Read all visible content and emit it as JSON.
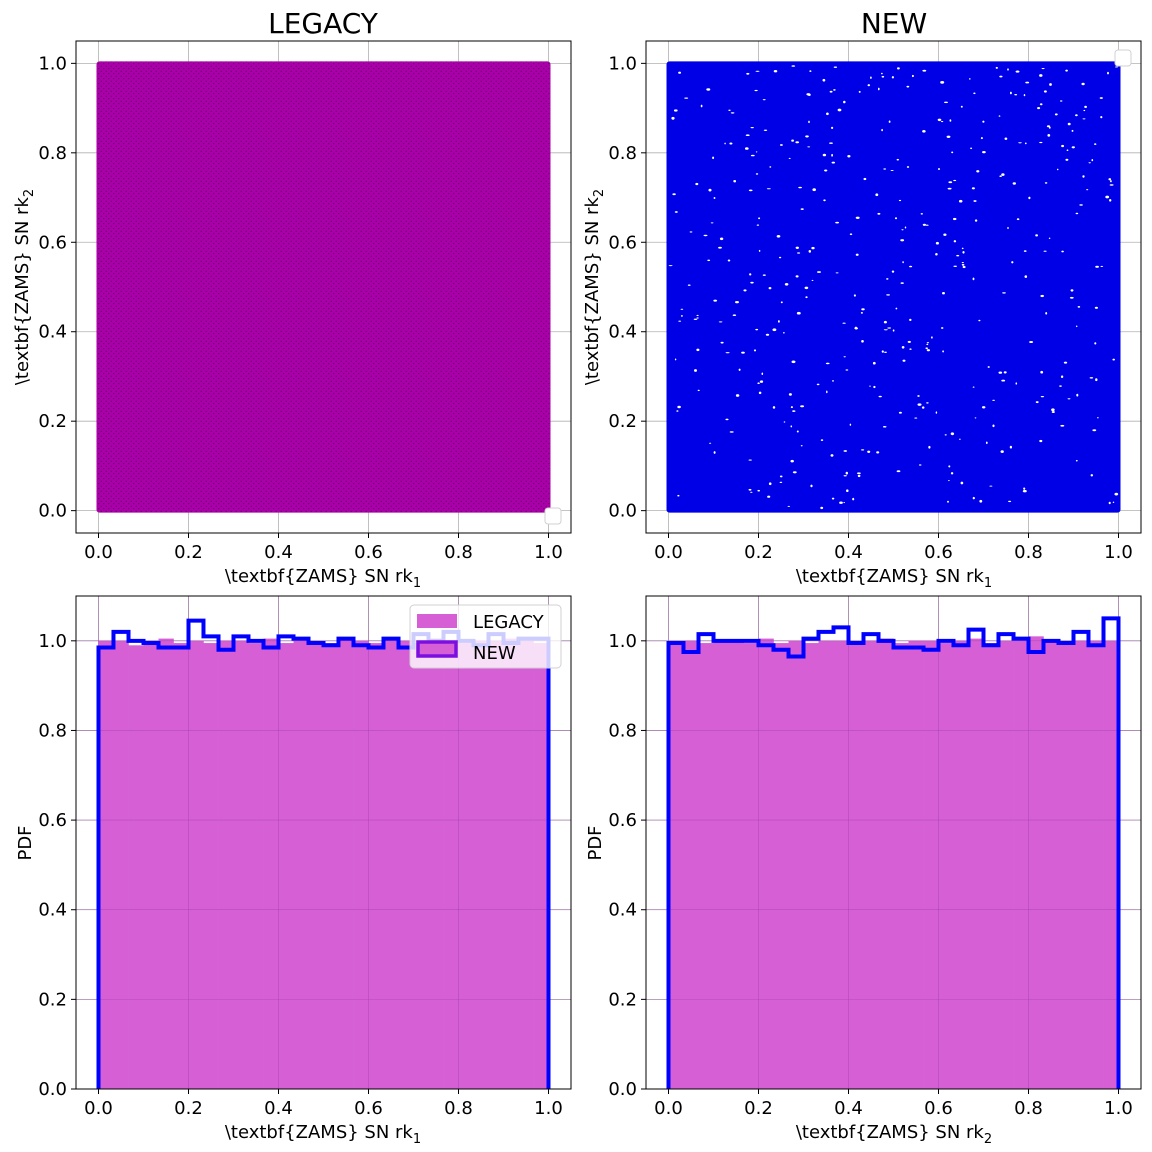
{
  "colors": {
    "legacy_fill": "#d65fd6",
    "legacy_scatter": "#aa00aa",
    "new_scatter": "#0000e6",
    "new_step": "#0000ff",
    "legend_new_edge": "#7b0fe0",
    "grid": "#b0b0b0"
  },
  "chart_data": [
    {
      "type": "scatter",
      "title": "LEGACY",
      "xlabel": "\\textbf{ZAMS} SN rk",
      "xlabel_sub": "1",
      "ylabel": "\\textbf{ZAMS} SN rk",
      "ylabel_sub": "2",
      "xlim": [
        -0.05,
        1.05
      ],
      "ylim": [
        -0.05,
        1.05
      ],
      "x_ticks": [
        "0.0",
        "0.2",
        "0.4",
        "0.6",
        "0.8",
        "1.0"
      ],
      "y_ticks": [
        "0.0",
        "0.2",
        "0.4",
        "0.6",
        "0.8",
        "1.0"
      ],
      "grid": true,
      "series": [
        {
          "color": "#aa00aa",
          "x_range": [
            0,
            1
          ],
          "y_range": [
            0,
            1
          ],
          "distribution": "uniform, dense"
        }
      ],
      "legend": {
        "placement": "lower right",
        "entries": []
      }
    },
    {
      "type": "scatter",
      "title": "NEW",
      "xlabel": "\\textbf{ZAMS} SN rk",
      "xlabel_sub": "1",
      "ylabel": "\\textbf{ZAMS} SN rk",
      "ylabel_sub": "2",
      "xlim": [
        -0.05,
        1.05
      ],
      "ylim": [
        -0.05,
        1.05
      ],
      "x_ticks": [
        "0.0",
        "0.2",
        "0.4",
        "0.6",
        "0.8",
        "1.0"
      ],
      "y_ticks": [
        "0.0",
        "0.2",
        "0.4",
        "0.6",
        "0.8",
        "1.0"
      ],
      "grid": true,
      "series": [
        {
          "color": "#0000e6",
          "x_range": [
            0,
            1
          ],
          "y_range": [
            0,
            1
          ],
          "distribution": "uniform, sparse"
        }
      ],
      "legend": {
        "placement": "upper right",
        "entries": []
      }
    },
    {
      "type": "histogram",
      "title": "",
      "xlabel": "\\textbf{ZAMS} SN rk",
      "xlabel_sub": "1",
      "ylabel": "PDF",
      "xlim": [
        -0.05,
        1.05
      ],
      "ylim": [
        0,
        1.1
      ],
      "x_ticks": [
        "0.0",
        "0.2",
        "0.4",
        "0.6",
        "0.8",
        "1.0"
      ],
      "y_ticks": [
        "0.0",
        "0.2",
        "0.4",
        "0.6",
        "0.8",
        "1.0"
      ],
      "grid": true,
      "bin_edges": [
        0,
        0.0333,
        0.0667,
        0.1,
        0.1333,
        0.1667,
        0.2,
        0.2333,
        0.2667,
        0.3,
        0.3333,
        0.3667,
        0.4,
        0.4333,
        0.4667,
        0.5,
        0.5333,
        0.5667,
        0.6,
        0.6333,
        0.6667,
        0.7,
        0.7333,
        0.7667,
        0.8,
        0.8333,
        0.8667,
        0.9,
        0.9333,
        0.9667,
        1.0
      ],
      "series": [
        {
          "name": "LEGACY",
          "style": "filled",
          "values": [
            1.0,
            1.0,
            0.99,
            1.0,
            1.005,
            0.995,
            1.0,
            0.995,
            1.0,
            1.0,
            0.995,
            1.005,
            0.995,
            1.0,
            1.0,
            0.995,
            1.005,
            1.0,
            0.995,
            1.0,
            1.0,
            0.995,
            1.005,
            1.0,
            0.995,
            1.0,
            1.0,
            1.005,
            1.0,
            0.995
          ]
        },
        {
          "name": "NEW",
          "style": "step",
          "values": [
            0.985,
            1.02,
            1.0,
            0.995,
            0.985,
            0.985,
            1.045,
            1.01,
            0.98,
            1.01,
            1.0,
            0.985,
            1.01,
            1.005,
            0.995,
            0.99,
            1.005,
            0.99,
            0.985,
            1.005,
            0.985,
            1.015,
            1.0,
            1.02,
            1.0,
            0.99,
            1.015,
            0.995,
            1.005,
            1.005
          ]
        }
      ],
      "legend": {
        "placement": "upper right",
        "entries": [
          "LEGACY",
          "NEW"
        ]
      }
    },
    {
      "type": "histogram",
      "title": "",
      "xlabel": "\\textbf{ZAMS} SN rk",
      "xlabel_sub": "2",
      "ylabel": "PDF",
      "xlim": [
        -0.05,
        1.05
      ],
      "ylim": [
        0,
        1.1
      ],
      "x_ticks": [
        "0.0",
        "0.2",
        "0.4",
        "0.6",
        "0.8",
        "1.0"
      ],
      "y_ticks": [
        "0.0",
        "0.2",
        "0.4",
        "0.6",
        "0.8",
        "1.0"
      ],
      "grid": true,
      "bin_edges": [
        0,
        0.0333,
        0.0667,
        0.1,
        0.1333,
        0.1667,
        0.2,
        0.2333,
        0.2667,
        0.3,
        0.3333,
        0.3667,
        0.4,
        0.4333,
        0.4667,
        0.5,
        0.5333,
        0.5667,
        0.6,
        0.6333,
        0.6667,
        0.7,
        0.7333,
        0.7667,
        0.8,
        0.8333,
        0.8667,
        0.9,
        0.9333,
        0.9667,
        1.0
      ],
      "series": [
        {
          "name": "LEGACY",
          "style": "filled",
          "values": [
            1.0,
            1.0,
            0.995,
            1.0,
            1.0,
            0.995,
            1.005,
            0.995,
            1.0,
            0.995,
            1.0,
            1.0,
            0.995,
            1.0,
            1.005,
            0.995,
            1.0,
            1.0,
            0.995,
            1.0,
            1.005,
            0.995,
            1.0,
            1.0,
            1.01,
            1.0,
            0.995,
            1.0,
            1.0,
            1.0
          ]
        },
        {
          "name": "NEW",
          "style": "step",
          "values": [
            0.995,
            0.975,
            1.015,
            1.0,
            1.0,
            1.0,
            0.99,
            0.98,
            0.965,
            1.005,
            1.02,
            1.03,
            0.995,
            1.015,
            1.0,
            0.985,
            0.985,
            0.98,
            1.0,
            0.99,
            1.025,
            0.99,
            1.015,
            1.005,
            0.975,
            1.0,
            0.995,
            1.02,
            0.99,
            1.05
          ]
        }
      ],
      "legend": {
        "placement": "none",
        "entries": []
      }
    }
  ]
}
